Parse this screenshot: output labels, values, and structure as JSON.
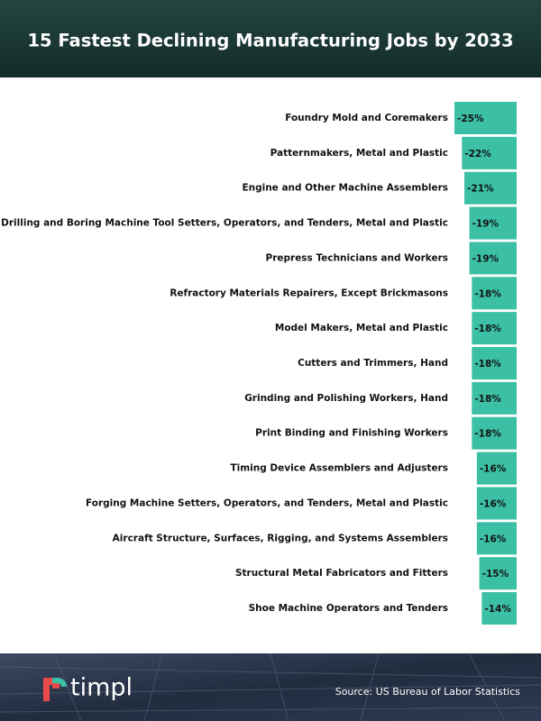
{
  "brand": "timpl",
  "chart_data": {
    "type": "bar",
    "orientation": "horizontal",
    "title": "15 Fastest Declining Manufacturing Jobs by 2033",
    "source": "Source: US Bureau of Labor Statistics",
    "color": "#3bbfa5",
    "categories": [
      "Foundry Mold and Coremakers",
      "Patternmakers, Metal and Plastic",
      "Engine and Other Machine Assemblers",
      "Drilling and Boring Machine Tool Setters, Operators, and Tenders, Metal and Plastic",
      "Prepress Technicians and Workers",
      "Refractory Materials Repairers, Except Brickmasons",
      "Model Makers, Metal and Plastic",
      "Cutters and Trimmers, Hand",
      "Grinding and Polishing Workers, Hand",
      "Print Binding and Finishing Workers",
      "Timing Device Assemblers and Adjusters",
      "Forging Machine Setters, Operators, and Tenders, Metal and Plastic",
      "Aircraft Structure, Surfaces, Rigging, and Systems Assemblers",
      "Structural Metal Fabricators and Fitters",
      "Shoe Machine Operators and Tenders"
    ],
    "values": [
      -25,
      -22,
      -21,
      -19,
      -19,
      -18,
      -18,
      -18,
      -18,
      -18,
      -16,
      -16,
      -16,
      -15,
      -14
    ],
    "value_labels": [
      "-25%",
      "-22%",
      "-21%",
      "-19%",
      "-19%",
      "-18%",
      "-18%",
      "-18%",
      "-18%",
      "-18%",
      "-16%",
      "-16%",
      "-16%",
      "-15%",
      "-14%"
    ]
  }
}
